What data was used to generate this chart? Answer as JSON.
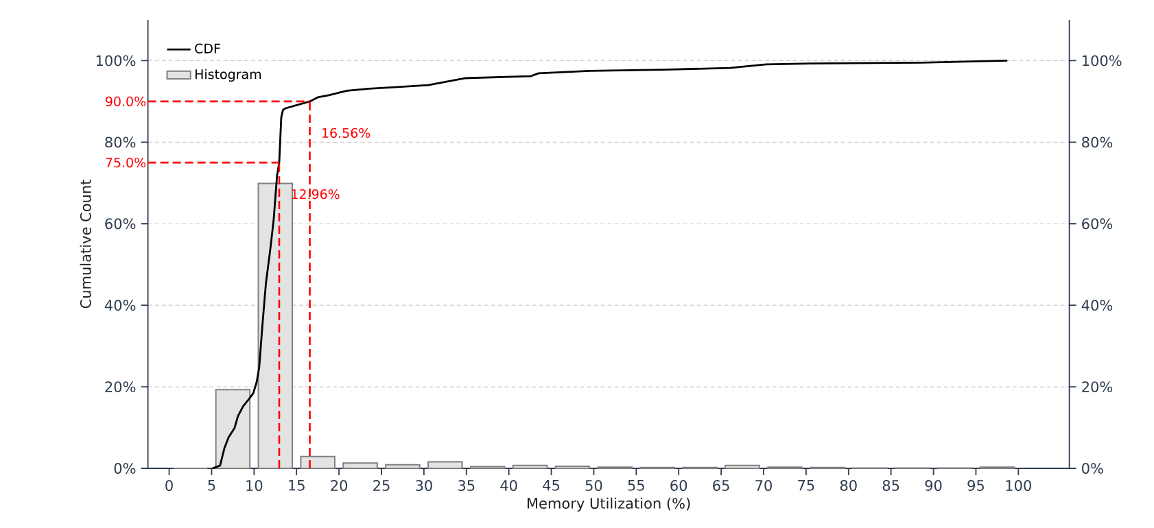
{
  "chart_data": {
    "type": "histogram",
    "xlabel": "Memory Utilization (%)",
    "ylabel": "Cumulative Count",
    "xlim": [
      -2.5,
      106
    ],
    "ylim": [
      0,
      110
    ],
    "y2lim": [
      0,
      110
    ],
    "xticks": [
      0,
      5,
      10,
      15,
      20,
      25,
      30,
      35,
      40,
      45,
      50,
      55,
      60,
      65,
      70,
      75,
      80,
      85,
      90,
      95,
      100
    ],
    "yticks": [
      {
        "value": 0,
        "label": "0%"
      },
      {
        "value": 20,
        "label": "20%"
      },
      {
        "value": 40,
        "label": "40%"
      },
      {
        "value": 60,
        "label": "60%"
      },
      {
        "value": 80,
        "label": "80%"
      },
      {
        "value": 100,
        "label": "100%"
      }
    ],
    "y2ticks": [
      {
        "value": 0,
        "label": "0%"
      },
      {
        "value": 20,
        "label": "20%"
      },
      {
        "value": 40,
        "label": "40%"
      },
      {
        "value": 60,
        "label": "60%"
      },
      {
        "value": 80,
        "label": "80%"
      },
      {
        "value": 100,
        "label": "100%"
      }
    ],
    "grid": "y",
    "legend": "top left",
    "series": [
      {
        "name": "CDF",
        "type": "line",
        "color": "#000000",
        "x": [
          5.1,
          6.0,
          6.5,
          7.0,
          7.7,
          8.1,
          8.7,
          9.4,
          9.9,
          10.3,
          10.6,
          11.0,
          11.4,
          11.9,
          12.3,
          12.7,
          12.96,
          13.2,
          13.4,
          13.7,
          16.56,
          17.5,
          18.8,
          20.9,
          23.5,
          26.6,
          30.5,
          34.8,
          42.6,
          43.5,
          49.5,
          58.2,
          66.0,
          70.3,
          75.5,
          88.5,
          98.7
        ],
        "values": [
          0,
          0.7,
          4.9,
          7.6,
          9.9,
          12.8,
          15.2,
          17.0,
          18.4,
          21.1,
          24.7,
          35.6,
          45.5,
          53.6,
          60.8,
          71.7,
          75.0,
          86.1,
          87.9,
          88.3,
          90.0,
          91.0,
          91.5,
          92.6,
          93.1,
          93.5,
          94.0,
          95.7,
          96.2,
          96.9,
          97.5,
          97.8,
          98.2,
          99.1,
          99.3,
          99.5,
          100
        ]
      },
      {
        "name": "Histogram",
        "color": "#808080",
        "bins": [
          0,
          5,
          10,
          15,
          20,
          25,
          30,
          35,
          40,
          45,
          50,
          55,
          60,
          65,
          70,
          75,
          80,
          85,
          90,
          95,
          100
        ],
        "values": [
          0,
          19.3,
          69.9,
          2.9,
          1.3,
          0.9,
          1.6,
          0.4,
          0.7,
          0.5,
          0.3,
          0.2,
          0.2,
          0.7,
          0.3,
          0.2,
          0.1,
          0.1,
          0.1,
          0.3
        ]
      }
    ],
    "ref_lines": [
      {
        "axis": "y",
        "value": 75.0,
        "label": "75.0%",
        "color": "#ff0000",
        "line_style": "dashed"
      },
      {
        "axis": "x",
        "value": 12.96,
        "label": "12.96%",
        "color": "#ff0000",
        "line_style": "dashed"
      },
      {
        "axis": "y",
        "value": 90.0,
        "label": "90.0%",
        "color": "#ff0000",
        "line_style": "dashed"
      },
      {
        "axis": "x",
        "value": 16.56,
        "label": "16.56%",
        "color": "#ff0000",
        "line_style": "dashed"
      }
    ]
  }
}
